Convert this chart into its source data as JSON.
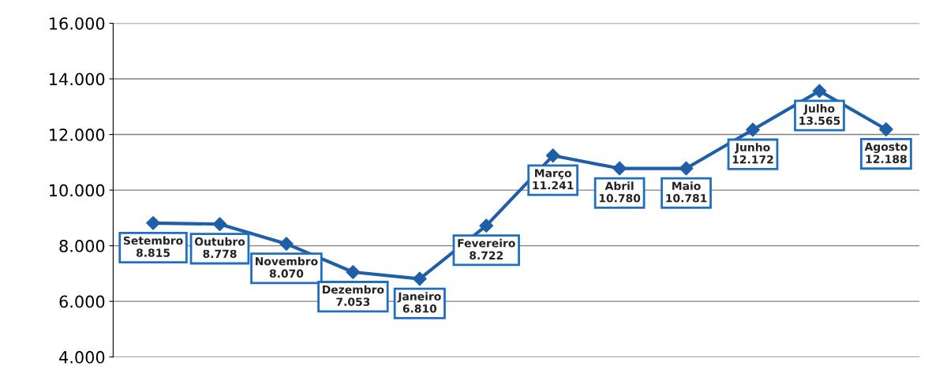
{
  "chart_data": {
    "type": "line",
    "categories": [
      "Setembro",
      "Outubro",
      "Novembro",
      "Dezembro",
      "Janeiro",
      "Fevereiro",
      "Março",
      "Abril",
      "Maio",
      "Junho",
      "Julho",
      "Agosto"
    ],
    "values": [
      8815,
      8778,
      8070,
      7053,
      6810,
      8722,
      11241,
      10780,
      10781,
      12172,
      13565,
      12188
    ],
    "value_labels": [
      "8.815",
      "8.778",
      "8.070",
      "7.053",
      "6.810",
      "8.722",
      "11.241",
      "10.780",
      "10.781",
      "12.172",
      "13.565",
      "12.188"
    ],
    "color": "#1f5fa8",
    "marker": "diamond",
    "grid": "y",
    "tick_labels": "y",
    "ylim": [
      4000,
      16000
    ],
    "yticks": [
      {
        "value": 4000,
        "label": "4.000"
      },
      {
        "value": 6000,
        "label": "6.000"
      },
      {
        "value": 8000,
        "label": "8.000"
      },
      {
        "value": 10000,
        "label": "10.000"
      },
      {
        "value": 12000,
        "label": "12.000"
      },
      {
        "value": 14000,
        "label": "14.000"
      },
      {
        "value": 16000,
        "label": "16.000"
      }
    ]
  }
}
